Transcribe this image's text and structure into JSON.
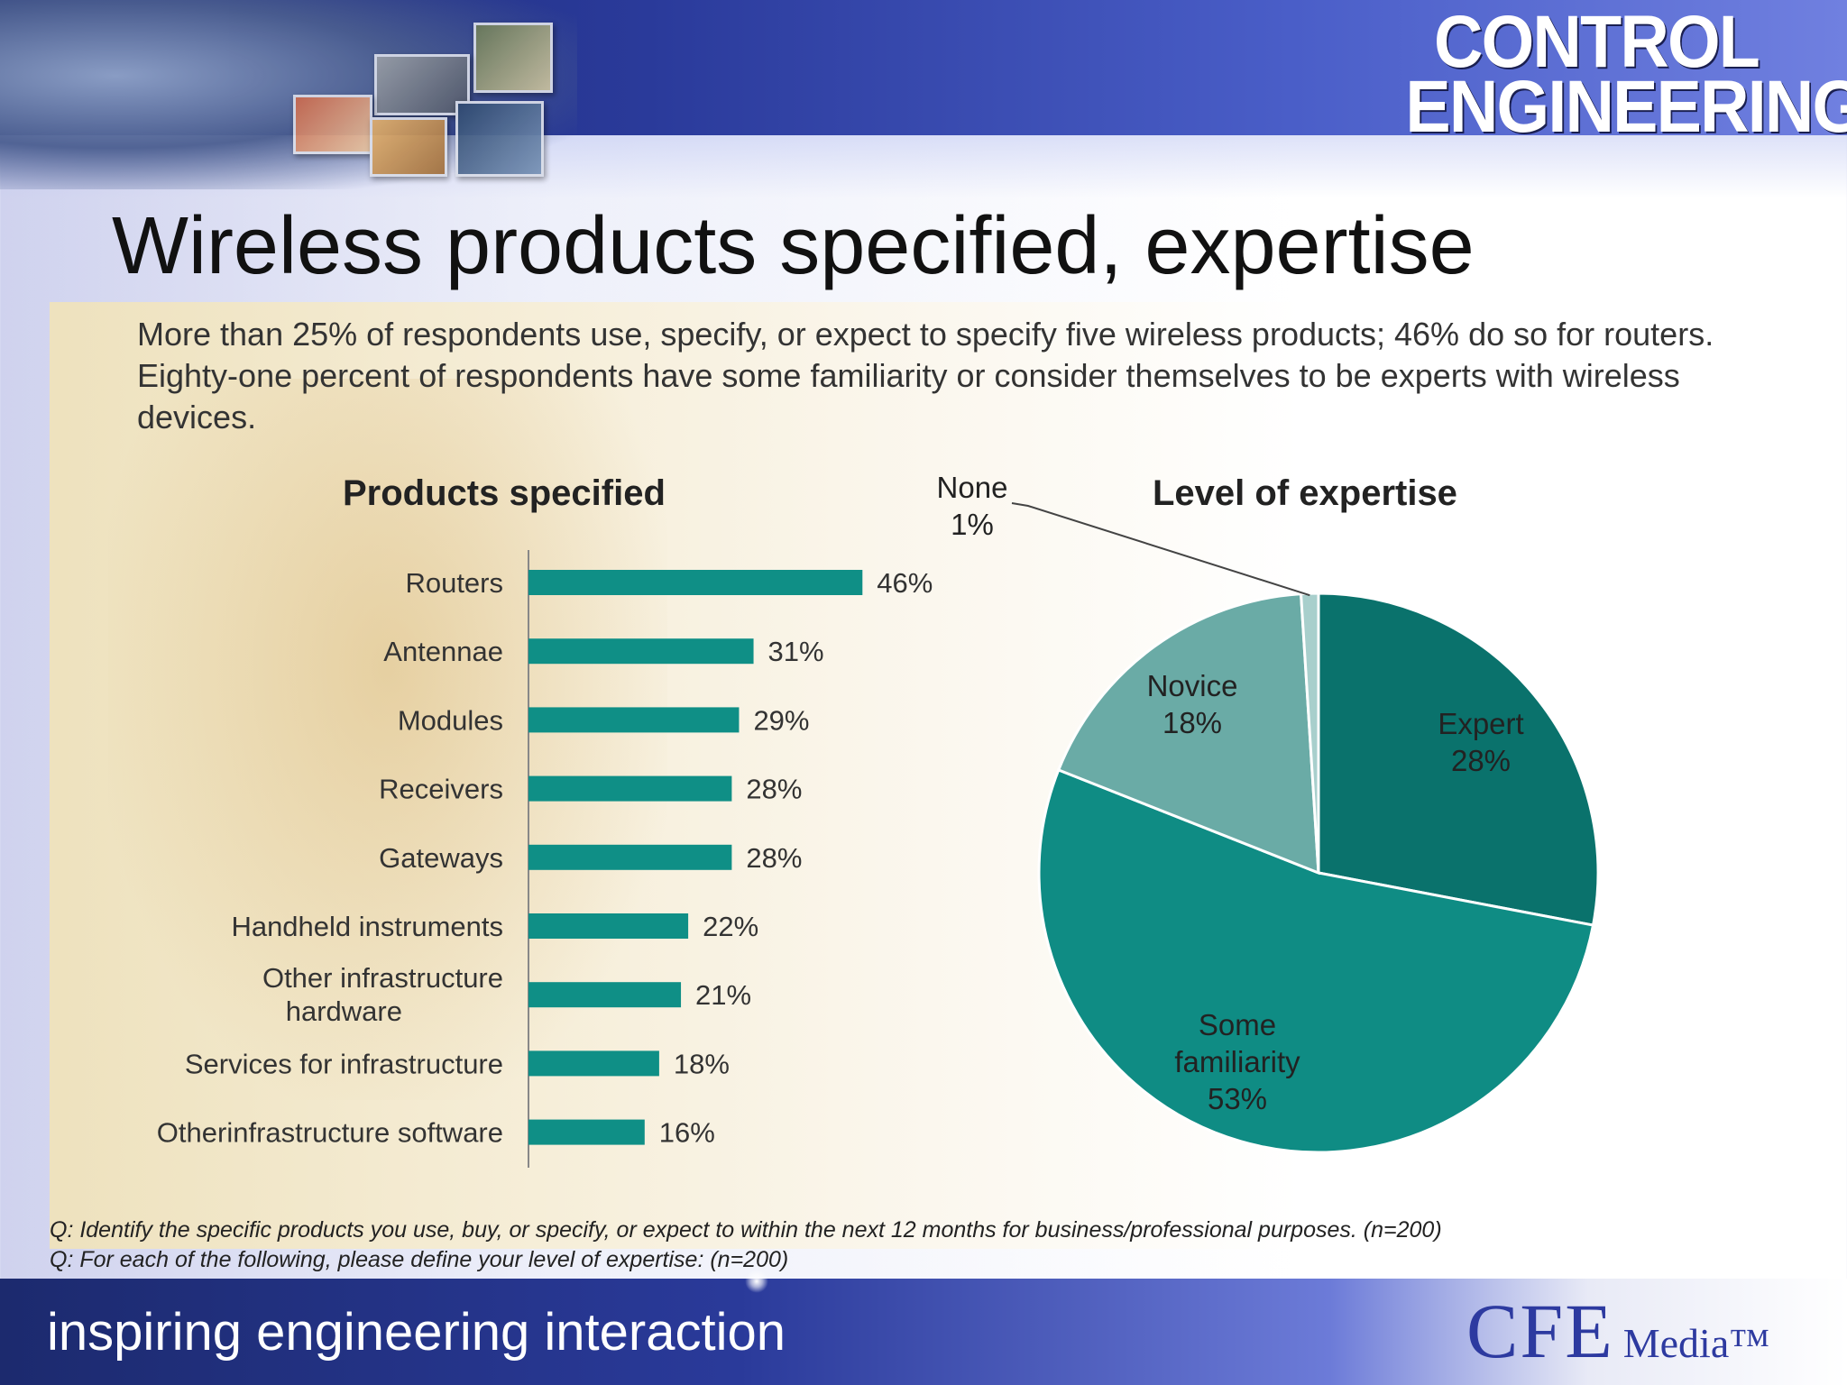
{
  "header": {
    "logo_line1": "CONTROL",
    "logo_line2": "ENGINEERING"
  },
  "slide": {
    "title": "Wireless products specified, expertise",
    "summary": "More than 25% of respondents use, specify, or expect to specify five wireless products; 46% do so for routers. Eighty-one percent of respondents have some familiarity or consider themselves to be experts with wireless devices.",
    "footnote_1": "Q: Identify the specific products you use, buy, or specify, or expect to within the next 12 months for business/professional purposes. (n=200)",
    "footnote_2": "Q: For each of the following, please define your level of expertise: (n=200)"
  },
  "footer": {
    "tagline": "inspiring engineering interaction",
    "brand_big": "CFE",
    "brand_small": "Media™"
  },
  "colors": {
    "bar": "#0f8f86",
    "pie": [
      "#0a726c",
      "#0f8c84",
      "#6aaba6",
      "#a8cfcc"
    ]
  },
  "chart_data": [
    {
      "type": "bar",
      "orientation": "horizontal",
      "title": "Products specified",
      "categories": [
        "Routers",
        "Antennae",
        "Modules",
        "Receivers",
        "Gateways",
        "Handheld instruments",
        "Other infrastructure hardware",
        "Services for infrastructure",
        "Otherinfrastructure software"
      ],
      "values": [
        46,
        31,
        29,
        28,
        28,
        22,
        21,
        18,
        16
      ],
      "labels": [
        "46%",
        "31%",
        "29%",
        "28%",
        "28%",
        "22%",
        "21%",
        "18%",
        "16%"
      ],
      "unit": "%",
      "xlim": [
        0,
        50
      ],
      "grid": false
    },
    {
      "type": "pie",
      "title": "Level of expertise",
      "slices": [
        {
          "label": "Expert",
          "value": 28,
          "value_label": "28%"
        },
        {
          "label": "Some familiarity",
          "value": 53,
          "value_label": "53%"
        },
        {
          "label": "Novice",
          "value": 18,
          "value_label": "18%"
        },
        {
          "label": "None",
          "value": 1,
          "value_label": "1%"
        }
      ]
    }
  ]
}
